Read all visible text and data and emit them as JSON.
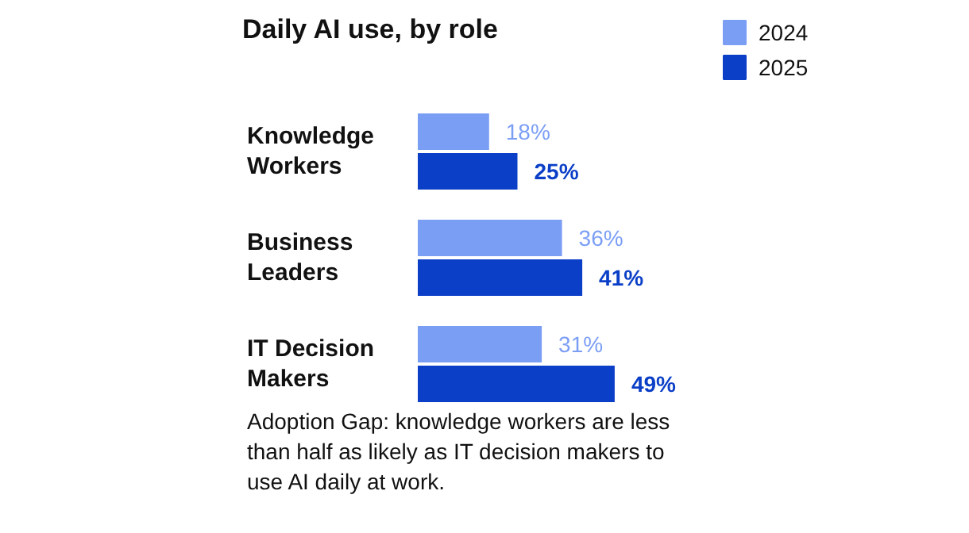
{
  "chart_data": {
    "type": "bar",
    "orientation": "horizontal",
    "title": "Daily AI use, by role",
    "categories": [
      "Knowledge Workers",
      "Business Leaders",
      "IT Decision Makers"
    ],
    "series": [
      {
        "name": "2024",
        "color": "#7b9ef5",
        "values": [
          18,
          36,
          31
        ],
        "value_labels": [
          "18%",
          "36%",
          "31%"
        ]
      },
      {
        "name": "2025",
        "color": "#0b3fc7",
        "values": [
          25,
          41,
          49
        ],
        "value_labels": [
          "25%",
          "41%",
          "49%"
        ]
      }
    ],
    "legend": "top right",
    "grid": false,
    "annotations": [
      "Adoption Gap: knowledge workers are less than half as likely as IT decision makers to use AI daily at work."
    ]
  }
}
